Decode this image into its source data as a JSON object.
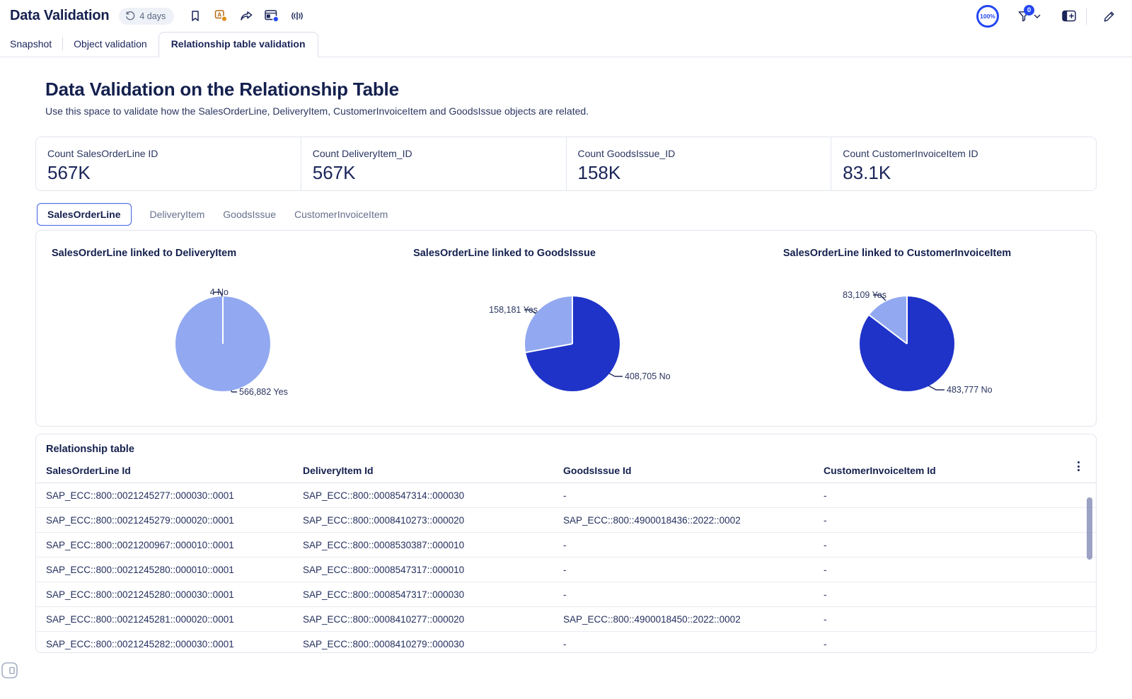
{
  "header": {
    "title": "Data Validation",
    "refresh_pill": "4 days",
    "zoom_level": "100%",
    "filter_count": "0"
  },
  "tabs": [
    {
      "label": "Snapshot",
      "active": false
    },
    {
      "label": "Object validation",
      "active": false
    },
    {
      "label": "Relationship table validation",
      "active": true
    }
  ],
  "page": {
    "title": "Data Validation on the Relationship Table",
    "subtitle": "Use this space to validate how the SalesOrderLine, DeliveryItem, CustomerInvoiceItem and GoodsIssue objects are related."
  },
  "kpis": [
    {
      "label": "Count SalesOrderLine ID",
      "value": "567K"
    },
    {
      "label": "Count DeliveryItem_ID",
      "value": "567K"
    },
    {
      "label": "Count GoodsIssue_ID",
      "value": "158K"
    },
    {
      "label": "Count CustomerInvoiceItem ID",
      "value": "83.1K"
    }
  ],
  "subtabs": [
    {
      "label": "SalesOrderLine",
      "active": true
    },
    {
      "label": "DeliveryItem",
      "active": false
    },
    {
      "label": "GoodsIssue",
      "active": false
    },
    {
      "label": "CustomerInvoiceItem",
      "active": false
    }
  ],
  "theme": {
    "accent": "#2447F2",
    "pie_dark": "#1F33C9",
    "pie_light": "#92A9F1"
  },
  "chart_data": [
    {
      "type": "pie",
      "title": "SalesOrderLine linked to DeliveryItem",
      "slices": [
        {
          "label": "No",
          "value": 4,
          "color": "#1F33C9"
        },
        {
          "label": "Yes",
          "value": 566882,
          "color": "#92A9F1"
        }
      ],
      "callouts": {
        "a": "4 No",
        "b": "566,882 Yes"
      }
    },
    {
      "type": "pie",
      "title": "SalesOrderLine linked to GoodsIssue",
      "slices": [
        {
          "label": "No",
          "value": 408705,
          "color": "#1F33C9"
        },
        {
          "label": "Yes",
          "value": 158181,
          "color": "#92A9F1"
        }
      ],
      "callouts": {
        "a": "158,181 Yes",
        "b": "408,705 No"
      }
    },
    {
      "type": "pie",
      "title": "SalesOrderLine linked to CustomerInvoiceItem",
      "slices": [
        {
          "label": "No",
          "value": 483777,
          "color": "#1F33C9"
        },
        {
          "label": "Yes",
          "value": 83109,
          "color": "#92A9F1"
        }
      ],
      "callouts": {
        "a": "83,109 Yes",
        "b": "483,777 No"
      }
    }
  ],
  "table": {
    "title": "Relationship table",
    "columns": [
      "SalesOrderLine Id",
      "DeliveryItem Id",
      "GoodsIssue Id",
      "CustomerInvoiceItem Id"
    ],
    "rows": [
      [
        "SAP_ECC::800::0021245277::000030::0001",
        "SAP_ECC::800::0008547314::000030",
        "-",
        "-"
      ],
      [
        "SAP_ECC::800::0021245279::000020::0001",
        "SAP_ECC::800::0008410273::000020",
        "SAP_ECC::800::4900018436::2022::0002",
        "-"
      ],
      [
        "SAP_ECC::800::0021200967::000010::0001",
        "SAP_ECC::800::0008530387::000010",
        "-",
        "-"
      ],
      [
        "SAP_ECC::800::0021245280::000010::0001",
        "SAP_ECC::800::0008547317::000010",
        "-",
        "-"
      ],
      [
        "SAP_ECC::800::0021245280::000030::0001",
        "SAP_ECC::800::0008547317::000030",
        "-",
        "-"
      ],
      [
        "SAP_ECC::800::0021245281::000020::0001",
        "SAP_ECC::800::0008410277::000020",
        "SAP_ECC::800::4900018450::2022::0002",
        "-"
      ],
      [
        "SAP_ECC::800::0021245282::000030::0001",
        "SAP_ECC::800::0008410279::000030",
        "-",
        "-"
      ]
    ]
  }
}
